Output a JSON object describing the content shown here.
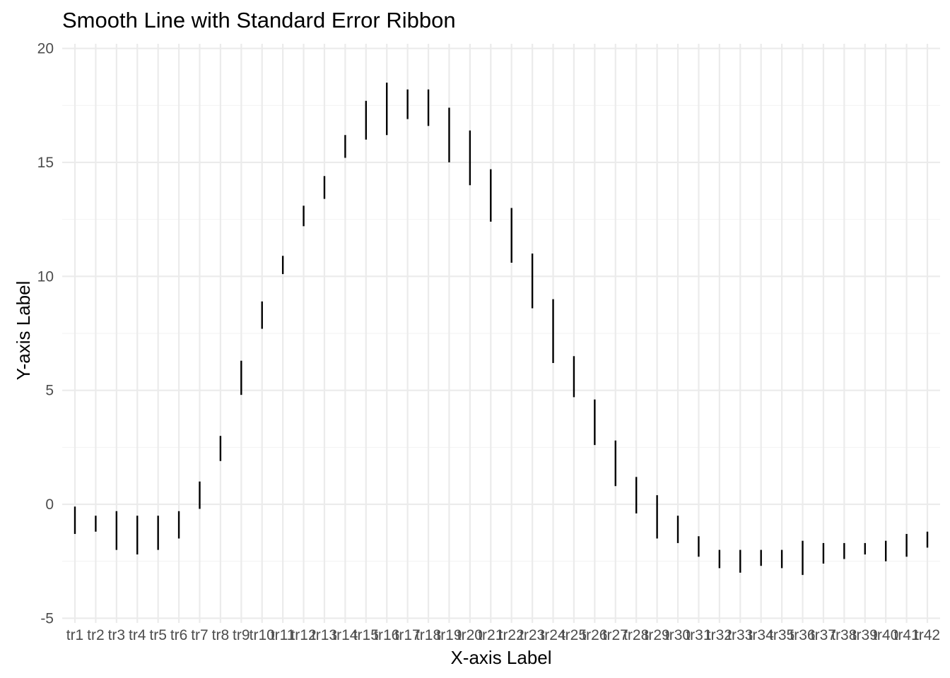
{
  "chart_data": {
    "type": "errorbar",
    "title": "Smooth Line with Standard Error Ribbon",
    "xlabel": "X-axis Label",
    "ylabel": "Y-axis Label",
    "ylim": [
      -5,
      20
    ],
    "yticks": [
      -5,
      0,
      5,
      10,
      15,
      20
    ],
    "grid": true,
    "legend": "none",
    "categories": [
      "tr1",
      "tr2",
      "tr3",
      "tr4",
      "tr5",
      "tr6",
      "tr7",
      "tr8",
      "tr9",
      "tr10",
      "tr11",
      "tr12",
      "tr13",
      "tr14",
      "tr15",
      "tr16",
      "tr17",
      "tr18",
      "tr19",
      "tr20",
      "tr21",
      "tr22",
      "tr23",
      "tr24",
      "tr25",
      "tr26",
      "tr27",
      "tr28",
      "tr29",
      "tr30",
      "tr31",
      "tr32",
      "tr33",
      "tr34",
      "tr35",
      "tr36",
      "tr37",
      "tr38",
      "tr39",
      "tr40",
      "tr41",
      "tr42"
    ],
    "series": [
      {
        "lower": [
          -1.3,
          -1.2,
          -2.0,
          -2.2,
          -2.0,
          -1.5,
          -0.2,
          1.9,
          4.8,
          7.7,
          10.1,
          12.2,
          13.4,
          15.2,
          16.0,
          16.2,
          16.9,
          16.6,
          15.0,
          14.0,
          12.4,
          10.6,
          8.6,
          6.2,
          4.7,
          2.6,
          0.8,
          -0.4,
          -1.5,
          -1.7,
          -2.3,
          -2.8,
          -3.0,
          -2.7,
          -2.8,
          -3.1,
          -2.6,
          -2.4,
          -2.2,
          -2.5,
          -2.3,
          -1.9
        ],
        "upper": [
          -0.1,
          -0.5,
          -0.3,
          -0.5,
          -0.5,
          -0.3,
          1.0,
          3.0,
          6.3,
          8.9,
          10.9,
          13.1,
          14.4,
          16.2,
          17.7,
          18.5,
          18.2,
          18.2,
          17.4,
          16.4,
          14.7,
          13.0,
          11.0,
          9.0,
          6.5,
          4.6,
          2.8,
          1.2,
          0.4,
          -0.5,
          -1.4,
          -2.0,
          -2.0,
          -2.0,
          -2.0,
          -1.6,
          -1.7,
          -1.7,
          -1.7,
          -1.6,
          -1.3,
          -1.2
        ]
      }
    ],
    "colors": {
      "bar": "#000000",
      "grid_major": "#ebebeb",
      "grid_minor": "#f2f2f2",
      "tick_text": "#4d4d4d"
    }
  }
}
